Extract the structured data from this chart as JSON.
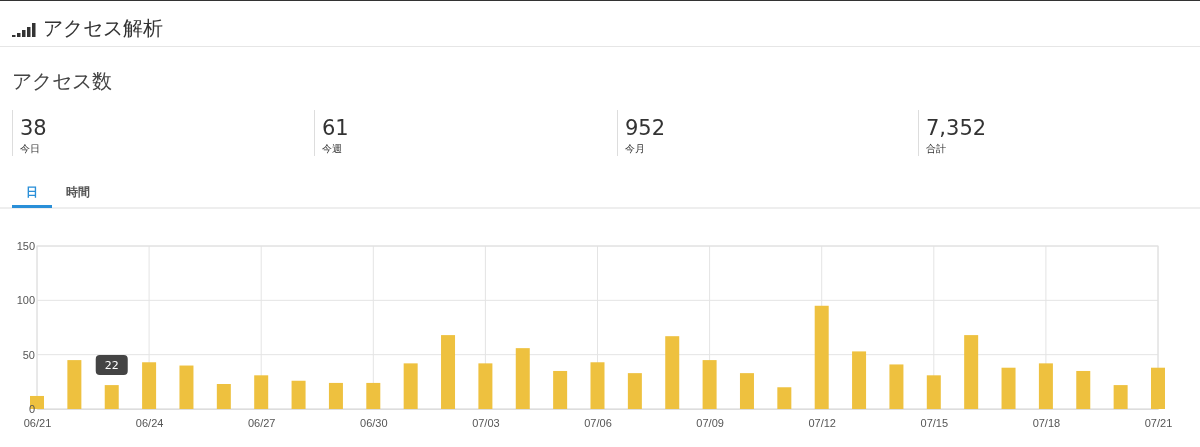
{
  "chart_data": {
    "type": "bar",
    "title": "アクセス解析",
    "subtitle": "アクセス数",
    "categories": [
      "06/21",
      null,
      null,
      "06/24",
      null,
      null,
      "06/27",
      null,
      null,
      "06/30",
      null,
      null,
      "07/03",
      null,
      null,
      "07/06",
      null,
      null,
      "07/09",
      null,
      null,
      "07/12",
      null,
      null,
      "07/15",
      null,
      null,
      "07/18",
      null,
      null,
      "07/21"
    ],
    "values": [
      12,
      45,
      22,
      43,
      40,
      23,
      31,
      26,
      24,
      24,
      42,
      68,
      42,
      56,
      35,
      43,
      33,
      67,
      45,
      33,
      20,
      95,
      53,
      41,
      31,
      68,
      38,
      42,
      35,
      22,
      38
    ],
    "color": "#eec13f",
    "ylim": [
      0,
      150
    ],
    "yticks": [
      0,
      50,
      100,
      150
    ],
    "grid": true,
    "annotations": [
      "38",
      "今日",
      "61",
      "今週",
      "952",
      "今月",
      "7,352",
      "合計",
      "日",
      "時間",
      {
        "text": "22",
        "y": 22
      }
    ]
  }
}
